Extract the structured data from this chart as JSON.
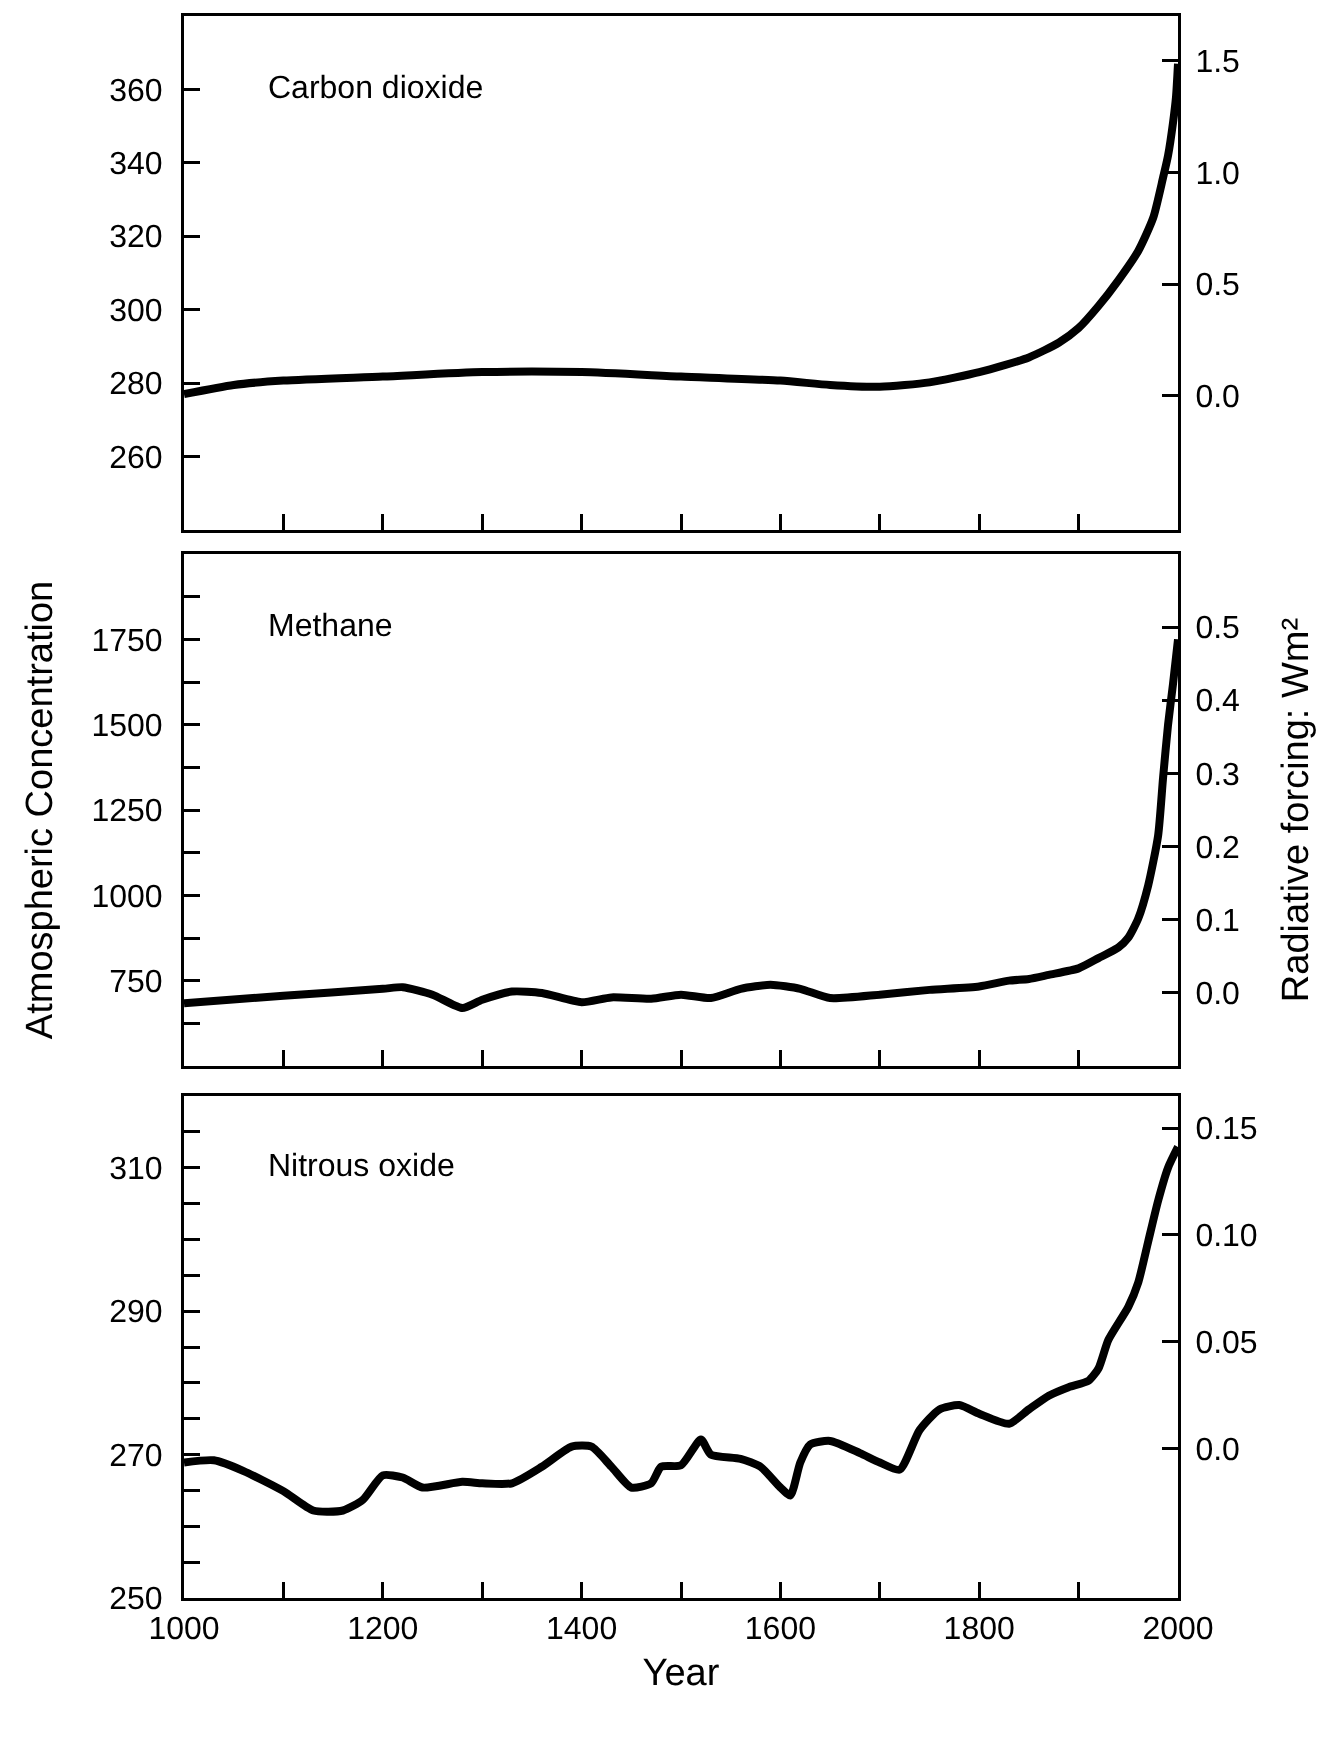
{
  "chart_data": [
    {
      "type": "line",
      "annotations": [
        "Carbon dioxide"
      ],
      "tick_labels": "y",
      "line_style": "solid",
      "x": [
        1000,
        1050,
        1100,
        1200,
        1300,
        1400,
        1500,
        1600,
        1650,
        1700,
        1750,
        1800,
        1850,
        1880,
        1900,
        1920,
        1940,
        1960,
        1975,
        1985,
        1990,
        1995,
        1998,
        2000
      ],
      "series": [
        {
          "color": "#000000",
          "values": [
            277,
            279.5,
            280.7,
            281.8,
            283,
            283,
            281.8,
            280.7,
            279.5,
            279,
            280.2,
            283,
            287,
            291,
            295,
            301,
            308,
            316,
            325,
            336,
            342,
            351,
            358,
            367
          ]
        }
      ],
      "xlim": [
        1000,
        2000
      ],
      "xticks": [
        {
          "value": 1100,
          "label": null
        },
        {
          "value": 1200,
          "label": null
        },
        {
          "value": 1300,
          "label": null
        },
        {
          "value": 1400,
          "label": null
        },
        {
          "value": 1500,
          "label": null
        },
        {
          "value": 1600,
          "label": null
        },
        {
          "value": 1700,
          "label": null
        },
        {
          "value": 1800,
          "label": null
        },
        {
          "value": 1900,
          "label": null
        }
      ],
      "ylim": [
        240,
        380
      ],
      "yticks": [
        260,
        280,
        300,
        320,
        340,
        360
      ],
      "y2lim": [
        -0.6,
        1.7
      ],
      "y2ticks": [
        {
          "value": 0,
          "label": "0.0"
        },
        0.5,
        {
          "value": 1,
          "label": "1.0"
        },
        1.5
      ]
    },
    {
      "type": "line",
      "annotations": [
        "Methane"
      ],
      "tick_labels": "y",
      "line_style": "solid",
      "ylabel": "Atmospheric Concentration",
      "y2label": "Radiative forcing: Wm²",
      "x": [
        1000,
        1100,
        1200,
        1220,
        1250,
        1280,
        1300,
        1330,
        1360,
        1400,
        1430,
        1470,
        1500,
        1530,
        1560,
        1590,
        1620,
        1650,
        1700,
        1750,
        1800,
        1830,
        1850,
        1870,
        1900,
        1920,
        1940,
        1950,
        1960,
        1970,
        1980,
        1985,
        1990,
        1995,
        2000
      ],
      "series": [
        {
          "color": "#000000",
          "values": [
            684,
            706,
            726,
            731,
            709,
            670,
            694,
            718,
            714,
            687,
            701,
            697,
            709,
            699,
            726,
            738,
            726,
            699,
            709,
            723,
            733,
            750,
            755,
            767,
            786,
            816,
            847,
            876,
            932,
            1029,
            1175,
            1345,
            1500,
            1620,
            1750
          ]
        }
      ],
      "xlim": [
        1000,
        2000
      ],
      "xticks": [
        {
          "value": 1100,
          "label": null
        },
        {
          "value": 1200,
          "label": null
        },
        {
          "value": 1300,
          "label": null
        },
        {
          "value": 1400,
          "label": null
        },
        {
          "value": 1500,
          "label": null
        },
        {
          "value": 1600,
          "label": null
        },
        {
          "value": 1700,
          "label": null
        },
        {
          "value": 1800,
          "label": null
        },
        {
          "value": 1900,
          "label": null
        }
      ],
      "ylim": [
        500,
        2000
      ],
      "yticks": [
        {
          "value": 625,
          "label": null
        },
        750,
        {
          "value": 875,
          "label": null
        },
        1000,
        {
          "value": 1125,
          "label": null
        },
        1250,
        {
          "value": 1375,
          "label": null
        },
        1500,
        {
          "value": 1625,
          "label": null
        },
        1750,
        {
          "value": 1875,
          "label": null
        }
      ],
      "y2lim": [
        -0.1,
        0.6
      ],
      "y2ticks": [
        {
          "value": 0,
          "label": "0.0"
        },
        0.1,
        0.2,
        0.3,
        0.4,
        0.5
      ]
    },
    {
      "type": "line",
      "annotations": [
        "Nitrous oxide"
      ],
      "line_style": "solid",
      "xlabel": "Year",
      "x": [
        1000,
        1030,
        1060,
        1100,
        1130,
        1160,
        1180,
        1200,
        1220,
        1240,
        1280,
        1300,
        1330,
        1360,
        1390,
        1410,
        1430,
        1450,
        1470,
        1480,
        1500,
        1520,
        1530,
        1560,
        1580,
        1600,
        1610,
        1620,
        1630,
        1650,
        1680,
        1700,
        1720,
        1740,
        1760,
        1780,
        1800,
        1830,
        1850,
        1870,
        1890,
        1910,
        1920,
        1930,
        1950,
        1960,
        1970,
        1980,
        1990,
        2000
      ],
      "series": [
        {
          "color": "#000000",
          "values": [
            268.9,
            269.2,
            267.7,
            264.9,
            262.2,
            262.2,
            263.7,
            267.1,
            266.8,
            265.4,
            266.2,
            266,
            266,
            268.3,
            271.1,
            271.1,
            268.3,
            265.4,
            266,
            268.3,
            268.5,
            272.1,
            270,
            269.4,
            268.3,
            265.4,
            264.3,
            268.9,
            271.4,
            271.9,
            270.2,
            268.9,
            267.9,
            273.4,
            276.3,
            276.9,
            275.7,
            274.3,
            276.3,
            278.2,
            279.4,
            280.3,
            282,
            286,
            290.6,
            294,
            299.7,
            305.4,
            310,
            312.9
          ]
        }
      ],
      "xlim": [
        1000,
        2000
      ],
      "xticks": [
        1000,
        {
          "value": 1100,
          "label": null
        },
        1200,
        {
          "value": 1300,
          "label": null
        },
        1400,
        {
          "value": 1500,
          "label": null
        },
        1600,
        {
          "value": 1700,
          "label": null
        },
        1800,
        {
          "value": 1900,
          "label": null
        },
        2000
      ],
      "ylim": [
        250,
        320
      ],
      "yticks": [
        250,
        {
          "value": 255,
          "label": null
        },
        {
          "value": 260,
          "label": null
        },
        {
          "value": 265,
          "label": null
        },
        270,
        {
          "value": 275,
          "label": null
        },
        {
          "value": 280,
          "label": null
        },
        {
          "value": 285,
          "label": null
        },
        290,
        {
          "value": 295,
          "label": null
        },
        {
          "value": 300,
          "label": null
        },
        {
          "value": 305,
          "label": null
        },
        310,
        {
          "value": 315,
          "label": null
        }
      ],
      "y2lim": [
        -0.07,
        0.165
      ],
      "y2ticks": [
        {
          "value": 0,
          "label": "0.0"
        },
        0.05,
        {
          "value": 0.1,
          "label": "0.10"
        },
        0.15
      ]
    }
  ]
}
